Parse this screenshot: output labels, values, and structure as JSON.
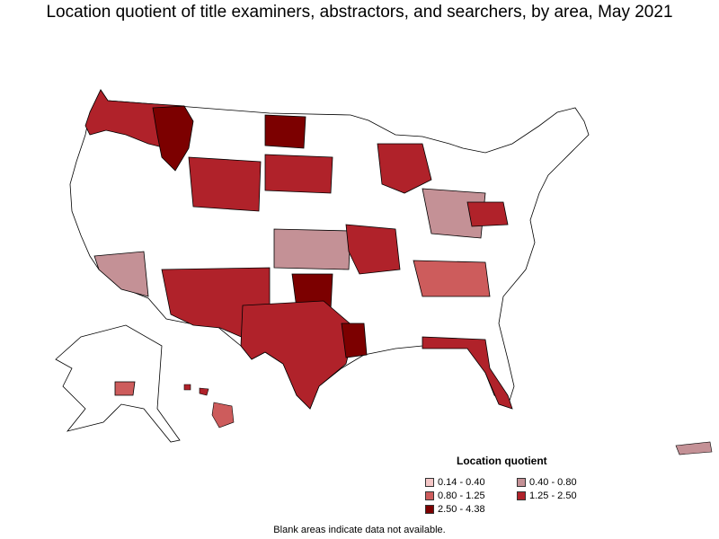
{
  "title": "Location quotient of title examiners, abstractors, and searchers, by area, May 2021",
  "legend": {
    "title": "Location quotient",
    "items": [
      {
        "label": "0.14 - 0.40",
        "color": "#f4c6c6"
      },
      {
        "label": "0.40 - 0.80",
        "color": "#c49196"
      },
      {
        "label": "0.80 - 1.25",
        "color": "#cd5c5c"
      },
      {
        "label": "1.25 - 2.50",
        "color": "#b0222a"
      },
      {
        "label": "2.50 - 4.38",
        "color": "#7c0000"
      }
    ]
  },
  "footnote": "Blank areas indicate data not available.",
  "map": {
    "no_data_color": "#ffffff",
    "border_color": "#000000"
  }
}
